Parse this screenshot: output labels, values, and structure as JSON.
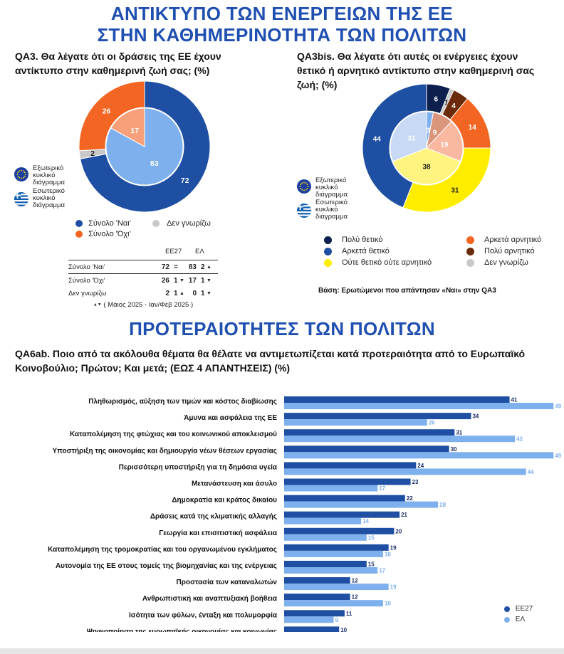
{
  "header": {
    "title_line1": "ΑΝΤΙΚΤΥΠΟ ΤΩΝ ΕΝΕΡΓΕΙΩΝ ΤΗΣ ΕΕ",
    "title_line2": "ΣΤΗΝ  ΚΑΘΗΜΕΡΙΝΟΤΗΤΑ ΤΩΝ ΠΟΛΙΤΩΝ",
    "section2_title": "ΠΡΟΤΕΡΑΙΟΤΗΤΕΣ ΤΩΝ ΠΟΛΙΤΩΝ"
  },
  "qa3": {
    "question_line1": "QA3. Θα λέγατε ότι οι δράσεις της ΕΕ έχουν",
    "question_line2": "αντίκτυπο στην καθημερινή ζωή σας; (%)",
    "ring_legend": {
      "outer_label_1": "Εξωτερικό",
      "outer_label_2": "κυκλικό",
      "outer_label_3": "διάγραμμα",
      "inner_label_1": "Εσωτερικό",
      "inner_label_2": "κυκλικό",
      "inner_label_3": "διάγραμμα"
    },
    "legend": {
      "yes": "Σύνολο 'Ναι'",
      "no": "Σύνολο 'Όχι'",
      "dk": "Δεν γνωρίζω"
    },
    "table": {
      "col_eu": "ΕΕ27",
      "col_el": "ΕΛ",
      "rows": [
        {
          "label": "Σύνολο 'Ναι'",
          "eu": "72",
          "eu_change": "=",
          "el": "83",
          "el_change": "2",
          "el_arrow": "▲"
        },
        {
          "label": "Σύνολο 'Όχι'",
          "eu": "26",
          "eu_change": "1",
          "eu_arrow": "▼",
          "el": "17",
          "el_change": "1",
          "el_arrow": "▼"
        },
        {
          "label": "Δεν γνωρίζω",
          "eu": "2",
          "eu_change": "1",
          "eu_arrow": "▲",
          "el": "0",
          "el_change": "1",
          "el_arrow": "▼"
        }
      ],
      "footnote": "( Μάιος 2025 - Ιαν/Φεβ 2025 )",
      "footnote_arrows": "▲▼"
    }
  },
  "qa3bis": {
    "question_line1": "QA3bis. Θα λέγατε ότι αυτές οι ενέργειες έχουν",
    "question_line2": "θετικό ή αρνητικό αντίκτυπο στην καθημερινή σας",
    "question_line3": "ζωή; (%)",
    "ring_legend": {
      "outer_label_1": "Εξωτερικό",
      "outer_label_2": "κυκλικό",
      "outer_label_3": "διάγραμμα",
      "inner_label_1": "Εσωτερικό",
      "inner_label_2": "κυκλικό",
      "inner_label_3": "διάγραμμα"
    },
    "legend": [
      {
        "label": "Πολύ θετικό",
        "color": "#0d1f4d"
      },
      {
        "label": "Αρκετά αρνητικό",
        "color": "#f26522"
      },
      {
        "label": "Αρκετά θετικό",
        "color": "#1e4fa3"
      },
      {
        "label": "Πολύ αρνητικό",
        "color": "#6b2a0a"
      },
      {
        "label": "Ούτε θετικό ούτε αρνητικό",
        "color": "#ffed00"
      },
      {
        "label": "Δεν γνωρίζω",
        "color": "#c9c9c9"
      }
    ],
    "base_note": "Βάση: Ερωτώμενοι που απάντησαν «Ναι» στην QA3"
  },
  "qa6": {
    "question_line1": "QA6ab. Ποιο από τα ακόλουθα θέματα θα θέλατε να αντιμετωπίζεται κατά προτεραιότητα από το Ευρωπαϊκό",
    "question_line2": "Κοινοβούλιο; Πρώτον;  Και μετά; (ΕΩΣ 4 ΑΠΑΝΤΗΣΕΙΣ) (%)",
    "legend_eu": "ΕΕ27",
    "legend_el": "ΕΛ"
  },
  "colors": {
    "title_blue": "#1f4fb0",
    "eu_dark": "#1e4fa3",
    "el_light": "#7fb0ee",
    "orange": "#f26522",
    "grey": "#c9c9c9",
    "light_orange": "#f7a07a",
    "light_blue_inner": "#7fb0ee"
  },
  "chart_data": [
    {
      "type": "pie",
      "subtype": "donut-nested",
      "title": "QA3. Θα λέγατε ότι οι δράσεις της ΕΕ έχουν αντίκτυπο στην καθημερινή ζωή σας; (%)",
      "outer_ring": {
        "name": "ΕΕ27",
        "slices": [
          {
            "label": "Σύνολο 'Ναι'",
            "value": 72,
            "color": "#1e4fa3"
          },
          {
            "label": "Δεν γνωρίζω",
            "value": 2,
            "color": "#c9c9c9"
          },
          {
            "label": "Σύνολο 'Όχι'",
            "value": 26,
            "color": "#f26522"
          }
        ]
      },
      "inner_ring": {
        "name": "ΕΛ",
        "slices": [
          {
            "label": "Σύνολο 'Ναι'",
            "value": 83,
            "color": "#7fb0ee"
          },
          {
            "label": "Δεν γνωρίζω",
            "value": 0,
            "color": "#dddddd"
          },
          {
            "label": "Σύνολο 'Όχι'",
            "value": 17,
            "color": "#f7a07a"
          }
        ]
      }
    },
    {
      "type": "pie",
      "subtype": "donut-nested",
      "title": "QA3bis. Θα λέγατε ότι αυτές οι ενέργειες έχουν θετικό ή αρνητικό αντίκτυπο στην καθημερινή σας ζωή; (%)",
      "outer_ring": {
        "name": "ΕΕ27",
        "slices": [
          {
            "label": "Πολύ θετικό",
            "value": 6,
            "color": "#0d1f4d"
          },
          {
            "label": "Δεν γνωρίζω",
            "value": 1,
            "color": "#c9c9c9"
          },
          {
            "label": "Πολύ αρνητικό",
            "value": 4,
            "color": "#6b2a0a"
          },
          {
            "label": "Αρκετά αρνητικό",
            "value": 14,
            "color": "#f26522"
          },
          {
            "label": "Ούτε θετικό ούτε αρνητικό",
            "value": 31,
            "color": "#ffed00"
          },
          {
            "label": "Αρκετά θετικό",
            "value": 44,
            "color": "#1e4fa3"
          }
        ]
      },
      "inner_ring": {
        "name": "ΕΛ",
        "slices": [
          {
            "label": "Πολύ θετικό",
            "value": 3,
            "color": "#7fb0ee"
          },
          {
            "label": "Δεν γνωρίζω",
            "value": 0,
            "color": "#dddddd"
          },
          {
            "label": "Πολύ αρνητικό",
            "value": 9,
            "color": "#d9967a"
          },
          {
            "label": "Αρκετά αρνητικό",
            "value": 19,
            "color": "#f9b8a0"
          },
          {
            "label": "Ούτε θετικό ούτε αρνητικό",
            "value": 38,
            "color": "#fff480"
          },
          {
            "label": "Αρκετά θετικό",
            "value": 31,
            "color": "#c7d9f5"
          }
        ]
      }
    },
    {
      "type": "bar",
      "orientation": "horizontal",
      "title": "QA6ab. Ποιο από τα ακόλουθα θέματα θα θέλατε να αντιμετωπίζεται κατά προτεραιότητα από το Ευρωπαϊκό Κοινοβούλιο; Πρώτον;  Και μετά; (ΕΩΣ 4 ΑΠΑΝΤΗΣΕΙΣ) (%)",
      "categories": [
        "Πληθωρισμός, αύξηση των τιμών και κόστος διαβίωσης",
        "Άμυνα και ασφάλεια της ΕΕ",
        "Καταπολέμηση της φτώχιας και του κοινωνικού αποκλεισμού",
        "Υποστήριξη της οικονομίας και δημιουργία νέων θέσεων εργασίας",
        "Περισσότερη υποστήριξη για τη δημόσια υγεία",
        "Μετανάστευση και άσυλο",
        "Δημοκρατία και κράτος δικαίου",
        "Δράσεις κατά της κλιματικής αλλαγής",
        "Γεωργία και επισιτιστική ασφάλεια",
        "Καταπολέμηση της τρομοκρατίας και του οργανωμένου εγκλήματος",
        "Αυτονομία της ΕΕ στους τομείς της βιομηχανίας και της ενέργειας",
        "Προστασία των καταναλωτών",
        "Ανθρωπιστική και αναπτυξιακή βοήθεια",
        "Ισότητα των φύλων, ένταξη και πολυμορφία",
        "Ψηφιοποίηση της ευρωπαϊκής οικονομίας και κοινωνίας"
      ],
      "series": [
        {
          "name": "ΕΕ27",
          "color": "#1e4fa3",
          "values": [
            41,
            34,
            31,
            30,
            24,
            23,
            22,
            21,
            20,
            19,
            15,
            12,
            12,
            11,
            10
          ]
        },
        {
          "name": "ΕΛ",
          "color": "#7fb0ee",
          "values": [
            49,
            26,
            42,
            49,
            44,
            17,
            28,
            14,
            15,
            18,
            17,
            19,
            18,
            9,
            8
          ]
        }
      ],
      "xlim": [
        0,
        50
      ],
      "legend_position": "bottom-right"
    }
  ]
}
